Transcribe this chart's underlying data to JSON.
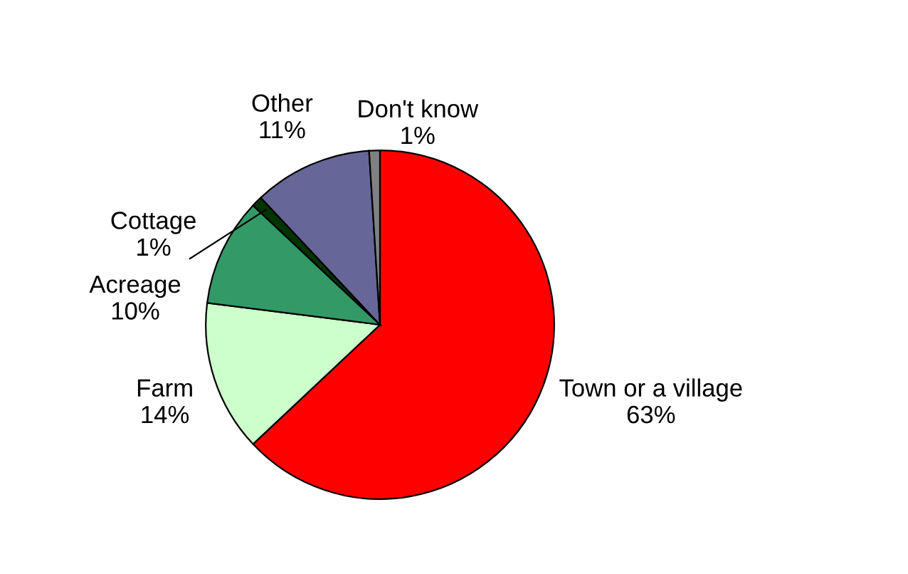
{
  "chart_data": {
    "type": "pie",
    "categories": [
      "Town or a village",
      "Farm",
      "Acreage",
      "Cottage",
      "Other",
      "Don't know"
    ],
    "values": [
      63,
      14,
      10,
      1,
      11,
      1
    ],
    "value_labels": [
      "63%",
      "14%",
      "10%",
      "1%",
      "11%",
      "1%"
    ],
    "colors": [
      "#ff0000",
      "#ccffcc",
      "#339966",
      "#003300",
      "#666699",
      "#808080"
    ],
    "legend": false
  }
}
